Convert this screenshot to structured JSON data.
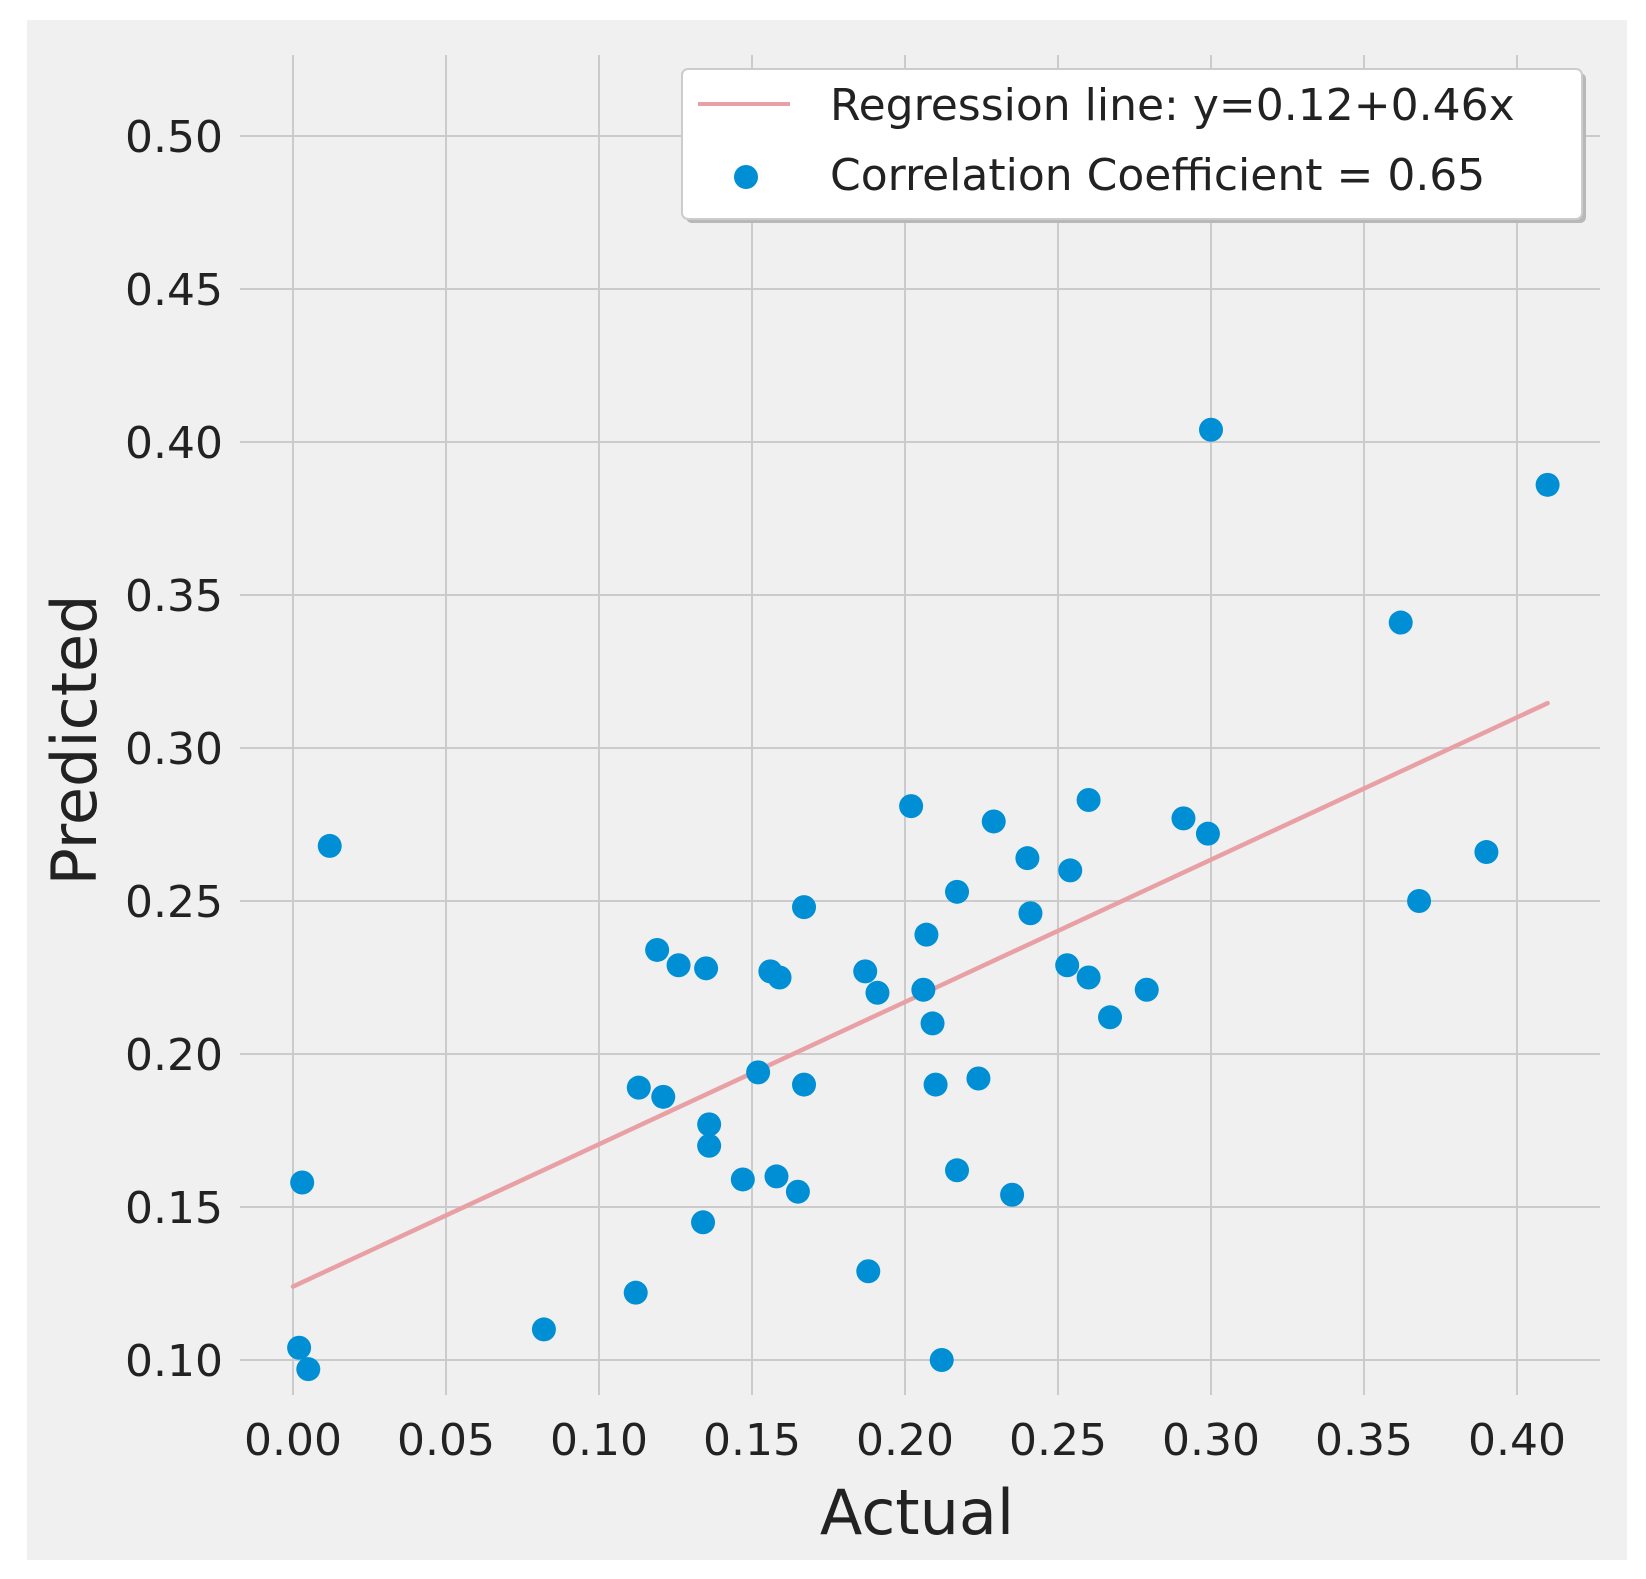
{
  "chart_data": {
    "type": "scatter",
    "title": "",
    "xlabel": "Actual",
    "ylabel": "Predicted",
    "xlim": [
      -0.016,
      0.42
    ],
    "ylim": [
      0.085,
      0.525
    ],
    "xticks": [
      0.0,
      0.05,
      0.1,
      0.15,
      0.2,
      0.25,
      0.3,
      0.35,
      0.4
    ],
    "yticks": [
      0.1,
      0.15,
      0.2,
      0.25,
      0.3,
      0.35,
      0.4,
      0.45,
      0.5
    ],
    "xtick_labels": [
      "0.00",
      "0.05",
      "0.10",
      "0.15",
      "0.20",
      "0.25",
      "0.30",
      "0.35",
      "0.40"
    ],
    "ytick_labels": [
      "0.10",
      "0.15",
      "0.20",
      "0.25",
      "0.30",
      "0.35",
      "0.40",
      "0.45",
      "0.50"
    ],
    "grid": true,
    "legend_position": "top-right",
    "colors": {
      "background": "#f0f0f0",
      "grid": "#cbcbcb",
      "points": "#008fd5",
      "regression": "#e8a0a4",
      "legend_bg": "#ffffff",
      "legend_border": "#cccccc"
    },
    "series": [
      {
        "name": "Correlation Coefficient = 0.65",
        "kind": "scatter",
        "points": [
          [
            0.002,
            0.104
          ],
          [
            0.005,
            0.097
          ],
          [
            0.003,
            0.158
          ],
          [
            0.012,
            0.268
          ],
          [
            0.082,
            0.11
          ],
          [
            0.112,
            0.122
          ],
          [
            0.113,
            0.189
          ],
          [
            0.119,
            0.234
          ],
          [
            0.121,
            0.186
          ],
          [
            0.126,
            0.229
          ],
          [
            0.135,
            0.228
          ],
          [
            0.134,
            0.145
          ],
          [
            0.136,
            0.177
          ],
          [
            0.136,
            0.17
          ],
          [
            0.147,
            0.159
          ],
          [
            0.152,
            0.194
          ],
          [
            0.156,
            0.227
          ],
          [
            0.159,
            0.225
          ],
          [
            0.158,
            0.16
          ],
          [
            0.165,
            0.155
          ],
          [
            0.167,
            0.248
          ],
          [
            0.167,
            0.19
          ],
          [
            0.187,
            0.227
          ],
          [
            0.191,
            0.22
          ],
          [
            0.188,
            0.129
          ],
          [
            0.202,
            0.281
          ],
          [
            0.207,
            0.239
          ],
          [
            0.206,
            0.221
          ],
          [
            0.209,
            0.21
          ],
          [
            0.21,
            0.19
          ],
          [
            0.212,
            0.1
          ],
          [
            0.217,
            0.253
          ],
          [
            0.217,
            0.162
          ],
          [
            0.224,
            0.192
          ],
          [
            0.229,
            0.276
          ],
          [
            0.235,
            0.154
          ],
          [
            0.24,
            0.264
          ],
          [
            0.241,
            0.246
          ],
          [
            0.253,
            0.229
          ],
          [
            0.254,
            0.26
          ],
          [
            0.26,
            0.283
          ],
          [
            0.26,
            0.225
          ],
          [
            0.267,
            0.212
          ],
          [
            0.279,
            0.221
          ],
          [
            0.291,
            0.277
          ],
          [
            0.299,
            0.272
          ],
          [
            0.3,
            0.404
          ],
          [
            0.362,
            0.341
          ],
          [
            0.368,
            0.25
          ],
          [
            0.39,
            0.266
          ],
          [
            0.41,
            0.386
          ]
        ]
      },
      {
        "name": "Regression line: y=0.12+0.46x",
        "kind": "line",
        "intercept": 0.124,
        "slope": 0.465,
        "x_range": [
          0.0,
          0.41
        ]
      }
    ]
  }
}
